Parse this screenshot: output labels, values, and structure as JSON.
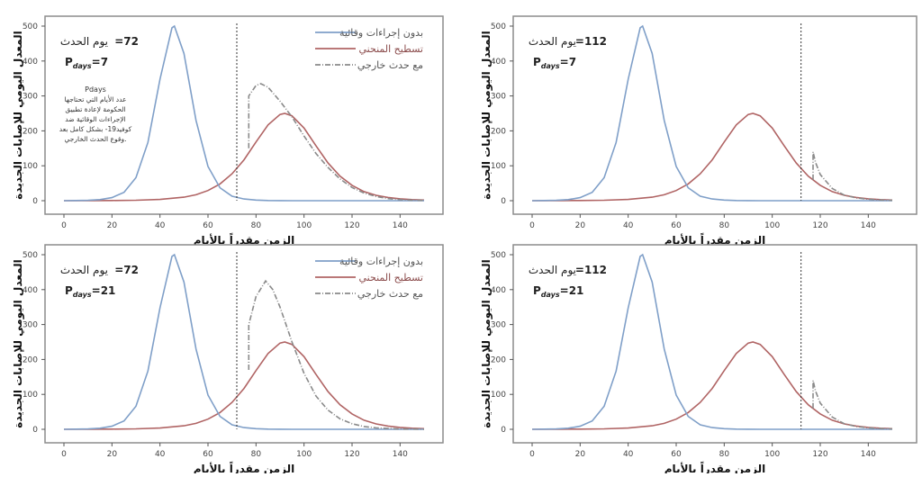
{
  "colors": {
    "no_measures": "#7f9fc8",
    "flatten": "#b06464",
    "external_event": "#8a8a8a",
    "event_line": "#333333",
    "frame": "#8c8c8c"
  },
  "legend": [
    "بدون إجراءات وقائية",
    "تسطيح المنحني",
    "مع حدث خارجي"
  ],
  "note": {
    "title": "Pdays",
    "lines": [
      "عدد الأيام التي تحتاجها",
      "الحكومة لإعادة تطبيق",
      "الإجراءات الوقائية ضد",
      "كوفيد19- بشكل كامل بعد",
      "وقوع الحدث الخارجي."
    ]
  },
  "chart_data": [
    {
      "type": "line",
      "position": "top-left",
      "xlabel": "الزمن مقدراً بالأيام",
      "ylabel": "المعدل اليومي للإصابات الجديدة",
      "xlim": [
        0,
        150
      ],
      "ylim": [
        0,
        500
      ],
      "xticks": [
        0,
        20,
        40,
        60,
        80,
        100,
        120,
        140
      ],
      "yticks": [
        0,
        100,
        200,
        300,
        400,
        500
      ],
      "event_label": "يوم الحدث",
      "event_value": "=72",
      "event_day": 72,
      "pdays_label": "P",
      "pdays_sub": "days",
      "pdays_value": "=7",
      "legend": "top-right",
      "show_legend": true,
      "show_note": true,
      "ext_x": [
        77,
        77,
        80,
        82,
        85,
        90,
        95,
        100,
        105,
        110,
        115,
        120,
        125,
        130,
        135,
        140,
        145,
        150
      ],
      "ext_y": [
        150,
        300,
        330,
        335,
        325,
        285,
        240,
        185,
        135,
        95,
        62,
        38,
        22,
        12,
        6,
        3,
        1.5,
        0.8
      ]
    },
    {
      "type": "line",
      "position": "top-right",
      "xlabel": "الزمن مقدراً بالأيام",
      "ylabel": "المعدل اليومي للإصابات الجديدة",
      "xlim": [
        0,
        150
      ],
      "ylim": [
        0,
        500
      ],
      "xticks": [
        0,
        20,
        40,
        60,
        80,
        100,
        120,
        140
      ],
      "yticks": [
        0,
        100,
        200,
        300,
        400,
        500
      ],
      "event_label": "يوم الحدث",
      "event_value": "=112",
      "event_day": 112,
      "pdays_label": "P",
      "pdays_sub": "days",
      "pdays_value": "=7",
      "show_legend": false,
      "show_note": false,
      "ext_x": [
        117,
        117,
        118,
        120,
        125,
        130,
        135,
        140,
        145,
        150
      ],
      "ext_y": [
        60,
        140,
        110,
        75,
        35,
        16,
        8,
        4,
        2,
        1
      ]
    },
    {
      "type": "line",
      "position": "bottom-left",
      "xlabel": "الزمن مقدراً بالأيام",
      "ylabel": "المعدل اليومي للإصابات الجديدة",
      "xlim": [
        0,
        150
      ],
      "ylim": [
        0,
        500
      ],
      "xticks": [
        0,
        20,
        40,
        60,
        80,
        100,
        120,
        140
      ],
      "yticks": [
        0,
        100,
        200,
        300,
        400,
        500
      ],
      "event_label": "يوم الحدث",
      "event_value": "=72",
      "event_day": 72,
      "pdays_label": "P",
      "pdays_sub": "days",
      "pdays_value": "=21",
      "legend": "top-right",
      "show_legend": true,
      "show_note": false,
      "ext_x": [
        77,
        77,
        80,
        84,
        87,
        90,
        95,
        100,
        105,
        110,
        115,
        120,
        125,
        130,
        140,
        150
      ],
      "ext_y": [
        170,
        300,
        380,
        425,
        400,
        350,
        250,
        160,
        95,
        55,
        30,
        16,
        8,
        4,
        1,
        0.3
      ]
    },
    {
      "type": "line",
      "position": "bottom-right",
      "xlabel": "الزمن مقدراً بالأيام",
      "ylabel": "المعدل اليومي للإصابات الجديدة",
      "xlim": [
        0,
        150
      ],
      "ylim": [
        0,
        500
      ],
      "xticks": [
        0,
        20,
        40,
        60,
        80,
        100,
        120,
        140
      ],
      "yticks": [
        0,
        100,
        200,
        300,
        400,
        500
      ],
      "event_label": "يوم الحدث",
      "event_value": "=112",
      "event_day": 112,
      "pdays_label": "P",
      "pdays_sub": "days",
      "pdays_value": "=21",
      "show_legend": false,
      "show_note": false,
      "ext_x": [
        117,
        117,
        118,
        120,
        125,
        130,
        135,
        140,
        145,
        150
      ],
      "ext_y": [
        60,
        140,
        110,
        75,
        35,
        16,
        8,
        4,
        2,
        1
      ]
    }
  ],
  "series_common": {
    "no_measures": {
      "x": [
        0,
        5,
        10,
        15,
        20,
        25,
        30,
        35,
        40,
        45,
        46,
        50,
        55,
        60,
        65,
        70,
        75,
        80,
        85,
        90,
        95,
        100,
        150
      ],
      "y": [
        0.1,
        0.4,
        1.1,
        3.1,
        8.8,
        24,
        66,
        167,
        348,
        495,
        500,
        422,
        230,
        98,
        37,
        13,
        4.8,
        1.7,
        0.6,
        0.2,
        0.1,
        0,
        0
      ]
    },
    "flatten": {
      "x": [
        0,
        10,
        20,
        30,
        40,
        50,
        55,
        60,
        65,
        70,
        75,
        80,
        85,
        90,
        92,
        95,
        100,
        105,
        110,
        115,
        120,
        125,
        130,
        135,
        140,
        145,
        150
      ],
      "y": [
        0.05,
        0.13,
        0.4,
        1.2,
        3.5,
        10,
        17,
        29,
        48,
        77,
        117,
        168,
        217,
        247,
        250,
        243,
        208,
        157,
        108,
        70,
        44,
        26,
        15.5,
        9.2,
        5.4,
        3.2,
        1.8
      ]
    }
  }
}
